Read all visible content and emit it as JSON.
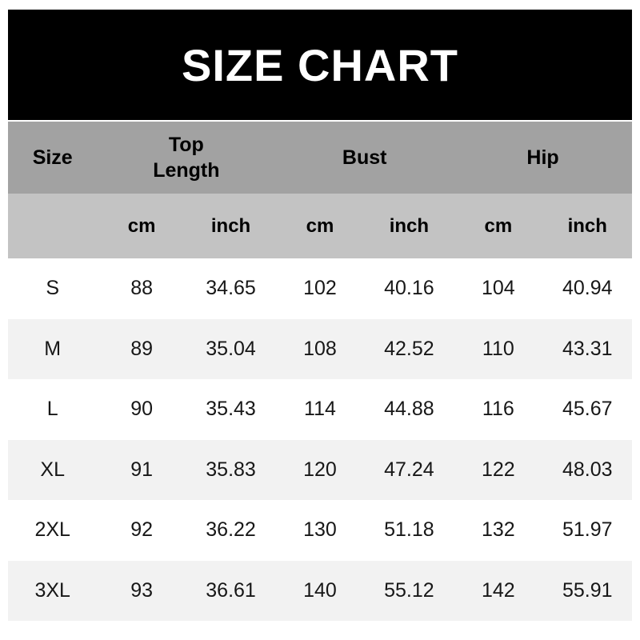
{
  "title": "SIZE CHART",
  "colors": {
    "title_bg": "#000000",
    "title_text": "#ffffff",
    "header_bg": "#a2a2a2",
    "units_bg": "#c3c3c3",
    "row_bg": "#ffffff",
    "row_alt_bg": "#f2f2f2",
    "text": "#171717"
  },
  "table": {
    "size_header": "Size",
    "groups": {
      "top_length": "Top\nLength",
      "bust": "Bust",
      "hip": "Hip"
    },
    "units": {
      "cm": "cm",
      "inch": "inch"
    },
    "rows": [
      {
        "size": "S",
        "values": [
          "88",
          "34.65",
          "102",
          "40.16",
          "104",
          "40.94"
        ]
      },
      {
        "size": "M",
        "values": [
          "89",
          "35.04",
          "108",
          "42.52",
          "110",
          "43.31"
        ]
      },
      {
        "size": "L",
        "values": [
          "90",
          "35.43",
          "114",
          "44.88",
          "116",
          "45.67"
        ]
      },
      {
        "size": "XL",
        "values": [
          "91",
          "35.83",
          "120",
          "47.24",
          "122",
          "48.03"
        ]
      },
      {
        "size": "2XL",
        "values": [
          "92",
          "36.22",
          "130",
          "51.18",
          "132",
          "51.97"
        ]
      },
      {
        "size": "3XL",
        "values": [
          "93",
          "36.61",
          "140",
          "55.12",
          "142",
          "55.91"
        ]
      }
    ]
  },
  "chart_data": {
    "type": "table",
    "title": "SIZE CHART",
    "columns": [
      "Size",
      "Top Length cm",
      "Top Length inch",
      "Bust cm",
      "Bust inch",
      "Hip cm",
      "Hip inch"
    ],
    "rows": [
      [
        "S",
        88,
        34.65,
        102,
        40.16,
        104,
        40.94
      ],
      [
        "M",
        89,
        35.04,
        108,
        42.52,
        110,
        43.31
      ],
      [
        "L",
        90,
        35.43,
        114,
        44.88,
        116,
        45.67
      ],
      [
        "XL",
        91,
        35.83,
        120,
        47.24,
        122,
        48.03
      ],
      [
        "2XL",
        92,
        36.22,
        130,
        51.18,
        132,
        51.97
      ],
      [
        "3XL",
        93,
        36.61,
        140,
        55.12,
        142,
        55.91
      ]
    ]
  }
}
